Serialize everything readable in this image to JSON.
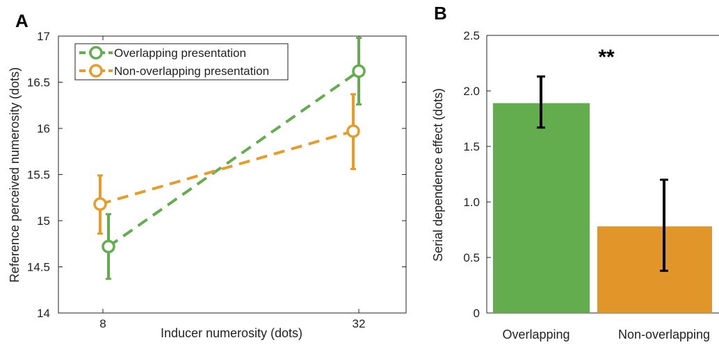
{
  "chart_data": [
    {
      "panel_label": "A",
      "type": "line",
      "xlabel": "Inducer numerosity (dots)",
      "ylabel": "Reference perceived numerosity (dots)",
      "x": [
        8,
        32
      ],
      "xticks": [
        "8",
        "32"
      ],
      "ylim": [
        14,
        17
      ],
      "yticks": [
        "14",
        "14.5",
        "15",
        "15.5",
        "16",
        "16.5",
        "17"
      ],
      "legend_position": "top-left",
      "series": [
        {
          "name": "Overlapping presentation",
          "color": "#63ad4f",
          "values": [
            14.72,
            16.62
          ],
          "error_low": [
            14.37,
            16.26
          ],
          "error_high": [
            15.07,
            16.98
          ]
        },
        {
          "name": "Non-overlapping presentation",
          "color": "#e79c2a",
          "values": [
            15.18,
            15.97
          ],
          "error_low": [
            14.86,
            15.56
          ],
          "error_high": [
            15.49,
            16.37
          ]
        }
      ]
    },
    {
      "panel_label": "B",
      "type": "bar",
      "ylabel": "Serial dependence effect (dots)",
      "ylim": [
        0,
        2.5
      ],
      "yticks": [
        "0",
        "0.5",
        "1.0",
        "1.5",
        "2.0",
        "2.5"
      ],
      "categories": [
        "Overlapping",
        "Non-overlapping"
      ],
      "values": [
        1.89,
        0.78
      ],
      "error_low": [
        1.67,
        0.38
      ],
      "error_high": [
        2.13,
        1.2
      ],
      "colors": [
        "#63ad4f",
        "#e2962a"
      ],
      "annotation": "**"
    }
  ]
}
